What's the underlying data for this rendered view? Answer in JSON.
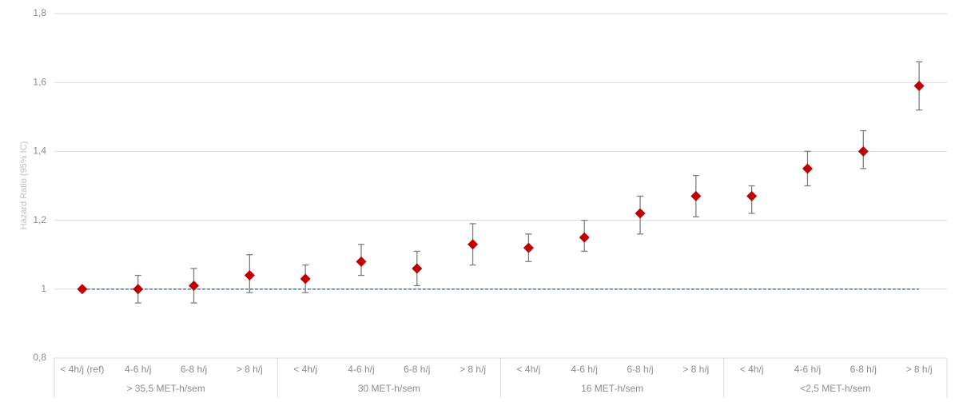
{
  "chart_data": {
    "type": "errorbar",
    "y_label": "Hazard Ratio (95% IC)",
    "categories": [
      "< 4h/j (ref)",
      "4-6 h/j",
      "6-8 h/j",
      "> 8 h/j",
      "< 4h/j",
      "4-6 h/j",
      "6-8 h/j",
      "> 8 h/j",
      "< 4h/j",
      "4-6 h/j",
      "6-8 h/j",
      "> 8 h/j",
      "< 4h/j",
      "4-6 h/j",
      "6-8 h/j",
      "> 8 h/j"
    ],
    "groups": [
      "> 35,5 MET-h/sem",
      "30 MET-h/sem",
      "16 MET-h/sem",
      "<2,5 MET-h/sem"
    ],
    "values": [
      1.0,
      1.0,
      1.01,
      1.04,
      1.03,
      1.08,
      1.06,
      1.13,
      1.12,
      1.15,
      1.22,
      1.27,
      1.27,
      1.35,
      1.4,
      1.59
    ],
    "lower": [
      null,
      0.96,
      0.96,
      0.99,
      0.99,
      1.04,
      1.01,
      1.07,
      1.08,
      1.11,
      1.16,
      1.21,
      1.22,
      1.3,
      1.35,
      1.52
    ],
    "upper": [
      null,
      1.04,
      1.06,
      1.1,
      1.07,
      1.13,
      1.11,
      1.19,
      1.16,
      1.2,
      1.27,
      1.33,
      1.3,
      1.4,
      1.46,
      1.66
    ],
    "color": "#c00000",
    "error_color": "#7f7f7f",
    "reference_line": 1,
    "reference_color": "#4472c4",
    "ylim": [
      0.8,
      1.8
    ],
    "yticks": [
      {
        "value": 0.8,
        "label": "0,8"
      },
      1,
      {
        "value": 1.2,
        "label": "1,2"
      },
      {
        "value": 1.4,
        "label": "1,4"
      },
      {
        "value": 1.6,
        "label": "1,6"
      },
      {
        "value": 1.8,
        "label": "1,8"
      }
    ],
    "grid": true
  }
}
